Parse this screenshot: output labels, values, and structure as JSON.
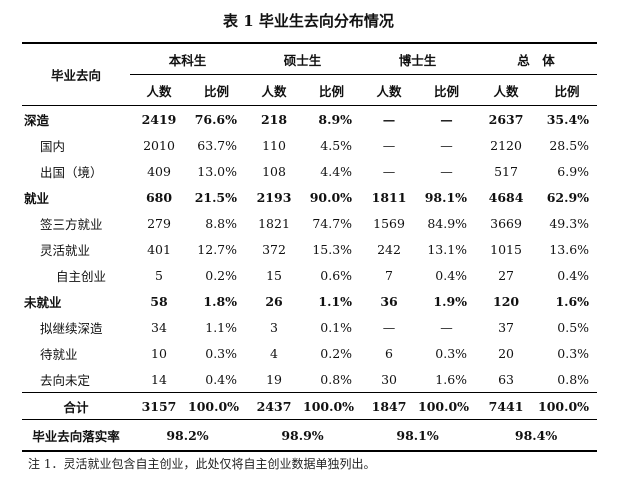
{
  "title": "表 1 毕业生去向分布情况",
  "header": {
    "row_label": "毕业去向",
    "groups": [
      "本科生",
      "硕士生",
      "博士生",
      "总　体"
    ],
    "sub": [
      "人数",
      "比例"
    ]
  },
  "rows": [
    {
      "label": "深造",
      "level": 0,
      "bold": true,
      "cells": [
        "2419",
        "76.6%",
        "218",
        "8.9%",
        "—",
        "—",
        "2637",
        "35.4%"
      ]
    },
    {
      "label": "国内",
      "level": 1,
      "bold": false,
      "cells": [
        "2010",
        "63.7%",
        "110",
        "4.5%",
        "—",
        "—",
        "2120",
        "28.5%"
      ]
    },
    {
      "label": "出国（境）",
      "level": 1,
      "bold": false,
      "cells": [
        "409",
        "13.0%",
        "108",
        "4.4%",
        "—",
        "—",
        "517",
        "6.9%"
      ]
    },
    {
      "label": "就业",
      "level": 0,
      "bold": true,
      "cells": [
        "680",
        "21.5%",
        "2193",
        "90.0%",
        "1811",
        "98.1%",
        "4684",
        "62.9%"
      ]
    },
    {
      "label": "签三方就业",
      "level": 1,
      "bold": false,
      "cells": [
        "279",
        "8.8%",
        "1821",
        "74.7%",
        "1569",
        "84.9%",
        "3669",
        "49.3%"
      ]
    },
    {
      "label": "灵活就业",
      "level": 1,
      "bold": false,
      "cells": [
        "401",
        "12.7%",
        "372",
        "15.3%",
        "242",
        "13.1%",
        "1015",
        "13.6%"
      ]
    },
    {
      "label": "自主创业",
      "level": 2,
      "bold": false,
      "cells": [
        "5",
        "0.2%",
        "15",
        "0.6%",
        "7",
        "0.4%",
        "27",
        "0.4%"
      ]
    },
    {
      "label": "未就业",
      "level": 0,
      "bold": true,
      "cells": [
        "58",
        "1.8%",
        "26",
        "1.1%",
        "36",
        "1.9%",
        "120",
        "1.6%"
      ]
    },
    {
      "label": "拟继续深造",
      "level": 1,
      "bold": false,
      "cells": [
        "34",
        "1.1%",
        "3",
        "0.1%",
        "—",
        "—",
        "37",
        "0.5%"
      ]
    },
    {
      "label": "待就业",
      "level": 1,
      "bold": false,
      "cells": [
        "10",
        "0.3%",
        "4",
        "0.2%",
        "6",
        "0.3%",
        "20",
        "0.3%"
      ]
    },
    {
      "label": "去向未定",
      "level": 1,
      "bold": false,
      "cells": [
        "14",
        "0.4%",
        "19",
        "0.8%",
        "30",
        "1.6%",
        "63",
        "0.8%"
      ]
    }
  ],
  "total": {
    "label": "合计",
    "cells": [
      "3157",
      "100.0%",
      "2437",
      "100.0%",
      "1847",
      "100.0%",
      "7441",
      "100.0%"
    ]
  },
  "rate": {
    "label": "毕业去向落实率",
    "values": [
      "98.2%",
      "98.9%",
      "98.1%",
      "98.4%"
    ]
  },
  "note": "注 1．灵活就业包含自主创业，此处仅将自主创业数据单独列出。"
}
